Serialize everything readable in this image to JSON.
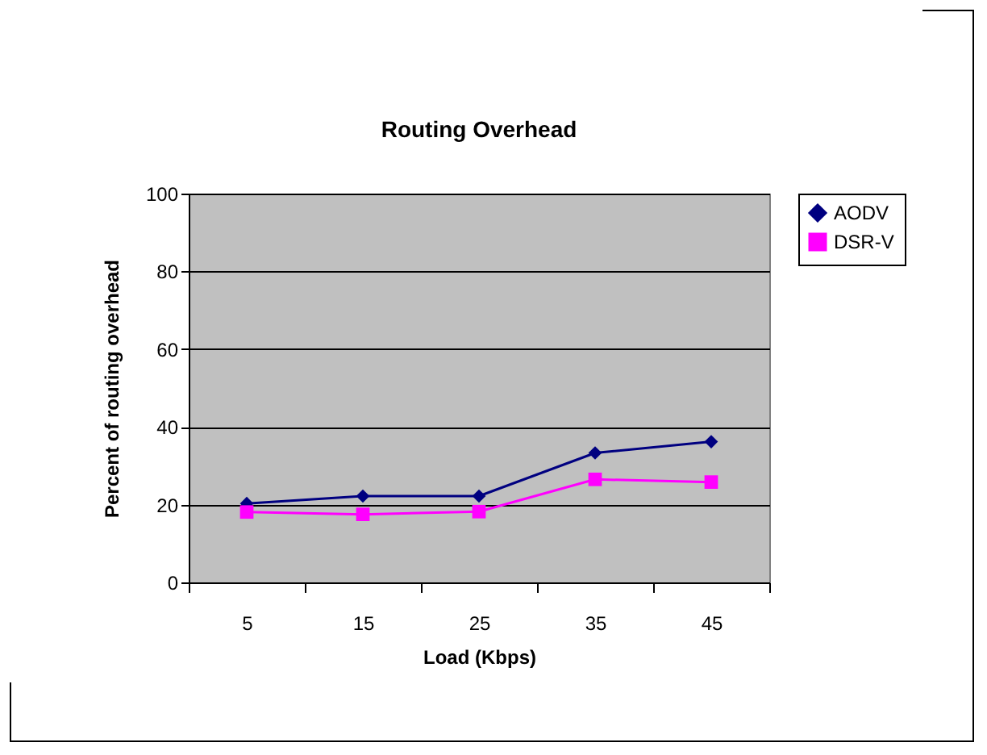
{
  "chart_data": {
    "type": "line",
    "title": "Routing Overhead",
    "xlabel": "Load (Kbps)",
    "ylabel": "Percent of routing overhead",
    "categories": [
      "5",
      "15",
      "25",
      "35",
      "45"
    ],
    "series": [
      {
        "name": "AODV",
        "color": "#000080",
        "marker": "diamond",
        "values": [
          20.3,
          22.2,
          22.2,
          33.3,
          36.2
        ]
      },
      {
        "name": "DSR-V",
        "color": "#ff00ff",
        "marker": "square",
        "values": [
          18.1,
          17.5,
          18.2,
          26.5,
          25.8
        ]
      }
    ],
    "ylim": [
      0,
      100
    ],
    "yticks": [
      0,
      20,
      40,
      60,
      80,
      100
    ],
    "grid": "y",
    "legend": "right"
  }
}
